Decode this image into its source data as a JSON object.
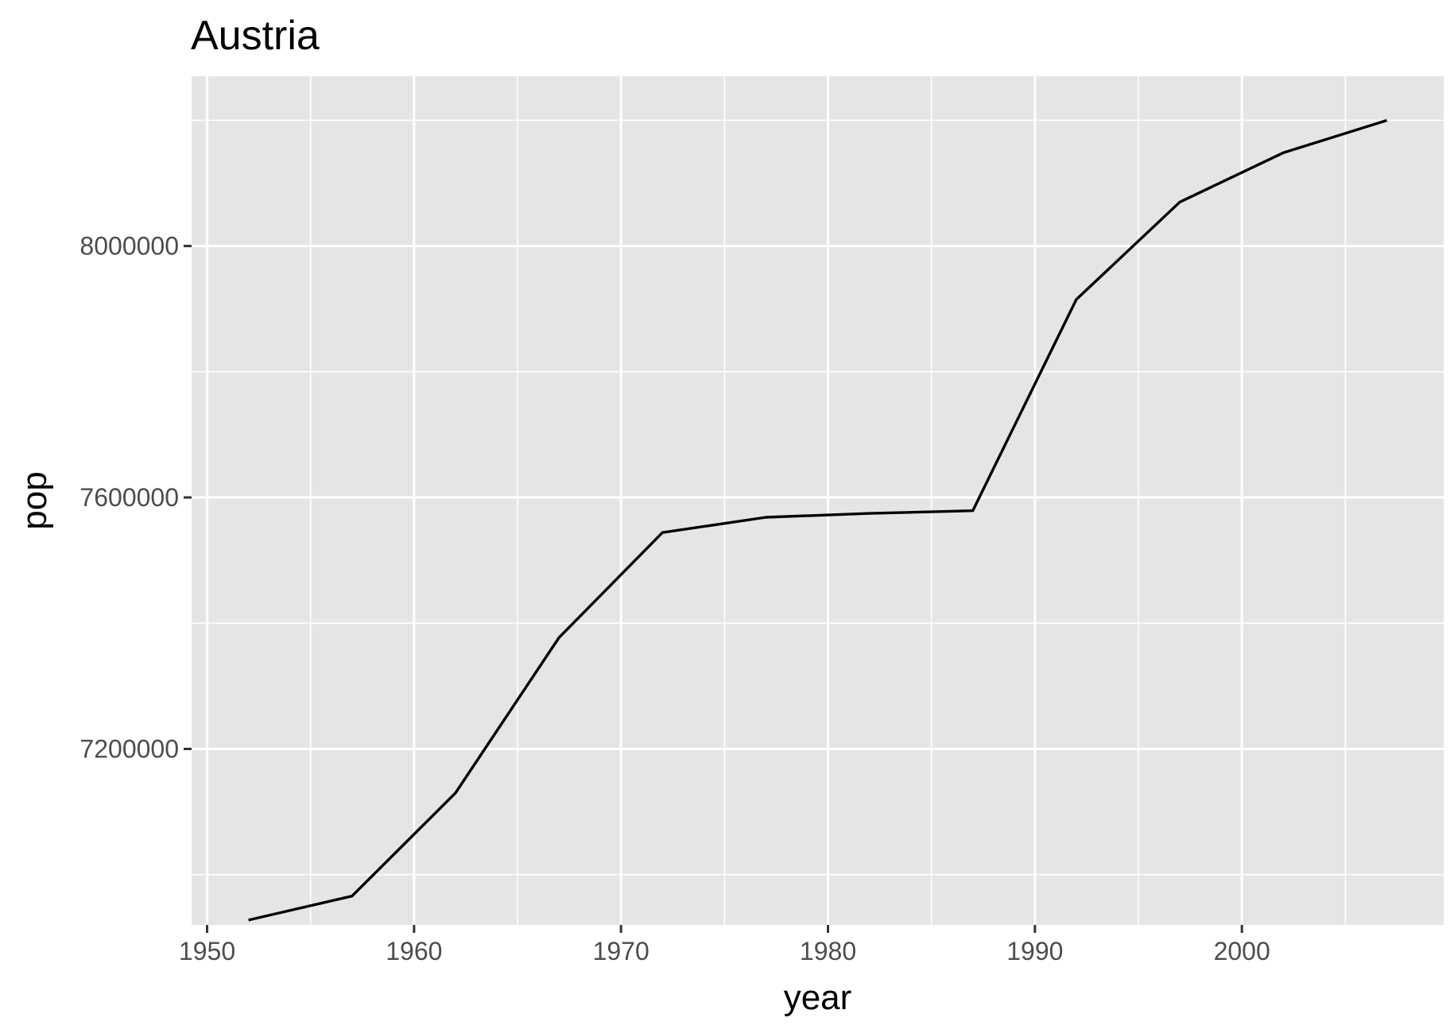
{
  "chart_data": {
    "type": "line",
    "title": "Austria",
    "xlabel": "year",
    "ylabel": "pop",
    "xlim": [
      1949.25,
      2009.75
    ],
    "ylim": [
      6920000,
      8270000
    ],
    "x_ticks": [
      1950,
      1960,
      1970,
      1980,
      1990,
      2000
    ],
    "x_tick_labels": [
      "1950",
      "1960",
      "1970",
      "1980",
      "1990",
      "2000"
    ],
    "y_ticks": [
      7200000,
      7600000,
      8000000
    ],
    "y_tick_labels": [
      "7200000",
      "7600000",
      "8000000"
    ],
    "grid": true,
    "legend": "none",
    "colors": {
      "panel": "#e5e5e5",
      "grid": "#ffffff",
      "line": "#000000",
      "tick": "#333333"
    },
    "series": [
      {
        "x": [
          1952,
          1957,
          1962,
          1967,
          1972,
          1977,
          1982,
          1987,
          1992,
          1997,
          2002,
          2007
        ],
        "values": [
          6927772,
          6965860,
          7129864,
          7376998,
          7544201,
          7568430,
          7574613,
          7578903,
          7914969,
          8069876,
          8148312,
          8199783
        ]
      }
    ]
  }
}
